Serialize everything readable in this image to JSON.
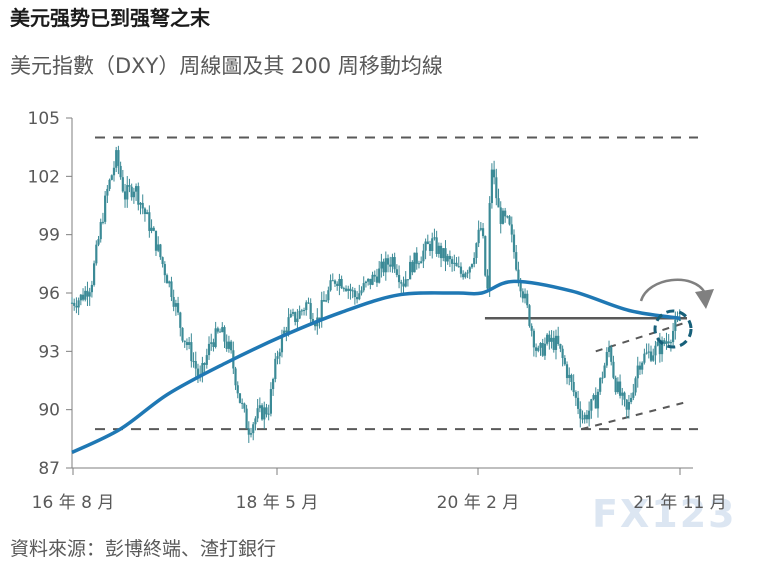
{
  "header": {
    "title": "美元强势已到强弩之末",
    "subtitle": "美元指數（DXY）周線圖及其 200 周移動均線",
    "source": "資料來源：彭博終端、渣打銀行",
    "watermark": "FX123"
  },
  "chart_data": {
    "type": "line",
    "series": [
      {
        "kind": "candlestick-weekly",
        "points": [
          [
            "2016-08-01",
            95.5
          ],
          [
            "2016-09-01",
            95.8
          ],
          [
            "2016-10-01",
            96.5
          ],
          [
            "2016-11-01",
            99.5
          ],
          [
            "2016-11-20",
            101.2
          ],
          [
            "2016-12-20",
            103.0
          ],
          [
            "2017-01-15",
            101.0
          ],
          [
            "2017-02-15",
            101.5
          ],
          [
            "2017-03-15",
            100.3
          ],
          [
            "2017-04-15",
            99.0
          ],
          [
            "2017-05-15",
            97.5
          ],
          [
            "2017-06-15",
            96.0
          ],
          [
            "2017-07-15",
            94.0
          ],
          [
            "2017-08-15",
            92.8
          ],
          [
            "2017-09-10",
            91.5
          ],
          [
            "2017-10-15",
            93.5
          ],
          [
            "2017-11-15",
            94.0
          ],
          [
            "2017-12-15",
            93.0
          ],
          [
            "2018-01-15",
            90.5
          ],
          [
            "2018-02-10",
            89.0
          ],
          [
            "2018-03-15",
            89.8
          ],
          [
            "2018-04-15",
            90.0
          ],
          [
            "2018-05-15",
            93.0
          ],
          [
            "2018-06-15",
            94.5
          ],
          [
            "2018-07-15",
            94.8
          ],
          [
            "2018-08-15",
            95.5
          ],
          [
            "2018-09-15",
            94.5
          ],
          [
            "2018-10-15",
            95.8
          ],
          [
            "2018-11-15",
            96.8
          ],
          [
            "2018-12-15",
            96.5
          ],
          [
            "2019-01-15",
            95.8
          ],
          [
            "2019-03-15",
            96.8
          ],
          [
            "2019-05-15",
            97.8
          ],
          [
            "2019-06-15",
            96.5
          ],
          [
            "2019-07-15",
            97.5
          ],
          [
            "2019-09-15",
            98.6
          ],
          [
            "2019-10-15",
            98.0
          ],
          [
            "2019-12-15",
            97.0
          ],
          [
            "2020-01-15",
            97.5
          ],
          [
            "2020-02-20",
            99.5
          ],
          [
            "2020-03-08",
            95.5
          ],
          [
            "2020-03-20",
            102.8
          ],
          [
            "2020-04-15",
            100.0
          ],
          [
            "2020-05-15",
            99.5
          ],
          [
            "2020-06-15",
            97.0
          ],
          [
            "2020-07-15",
            95.0
          ],
          [
            "2020-08-15",
            92.8
          ],
          [
            "2020-09-15",
            93.5
          ],
          [
            "2020-10-15",
            93.4
          ],
          [
            "2020-11-15",
            92.0
          ],
          [
            "2020-12-15",
            90.5
          ],
          [
            "2021-01-06",
            89.5
          ],
          [
            "2021-02-15",
            90.5
          ],
          [
            "2021-03-31",
            93.3
          ],
          [
            "2021-04-15",
            91.5
          ],
          [
            "2021-05-25",
            89.8
          ],
          [
            "2021-06-30",
            92.4
          ],
          [
            "2021-07-15",
            92.7
          ],
          [
            "2021-08-15",
            93.0
          ],
          [
            "2021-09-15",
            93.3
          ],
          [
            "2021-10-15",
            94.0
          ],
          [
            "2021-11-10",
            94.6
          ]
        ]
      },
      {
        "kind": "moving-average-200w",
        "points": [
          [
            "2016-08-01",
            87.8
          ],
          [
            "2017-01-01",
            89.0
          ],
          [
            "2017-06-01",
            90.8
          ],
          [
            "2017-12-01",
            92.4
          ],
          [
            "2018-06-01",
            93.8
          ],
          [
            "2018-12-01",
            95.0
          ],
          [
            "2019-06-01",
            95.9
          ],
          [
            "2019-12-01",
            96.0
          ],
          [
            "2020-02-20",
            96.0
          ],
          [
            "2020-06-01",
            96.6
          ],
          [
            "2020-12-01",
            96.1
          ],
          [
            "2021-06-01",
            95.1
          ],
          [
            "2021-11-10",
            94.7
          ]
        ]
      }
    ],
    "x_ticks": [
      "16 年 8 月",
      "18 年 5 月",
      "20 年 2 月",
      "21 年 11 月"
    ],
    "y_ticks": [
      "105",
      "102",
      "99",
      "96",
      "93",
      "90",
      "87"
    ],
    "ylim": [
      87,
      105
    ],
    "xlim": [
      "2016-08-01",
      "2021-12-20"
    ],
    "grid": false,
    "reference_lines": [
      {
        "style": "dashed",
        "y": 104.0
      },
      {
        "style": "dashed",
        "y": 89.0
      },
      {
        "style": "solid",
        "y": 94.7,
        "from": "2020-03-01",
        "to": "2021-12-01"
      },
      {
        "style": "dashed",
        "from": [
          "2021-02-15",
          93.0
        ],
        "to": [
          "2021-12-01",
          94.5
        ]
      },
      {
        "style": "dashed",
        "from": [
          "2021-01-01",
          89.0
        ],
        "to": [
          "2021-12-01",
          90.4
        ]
      }
    ],
    "colors": {
      "price": "#3b8a96",
      "ma": "#1f78b4",
      "ref": "#595959",
      "marker": "#17607a",
      "arrow": "#808080"
    }
  }
}
